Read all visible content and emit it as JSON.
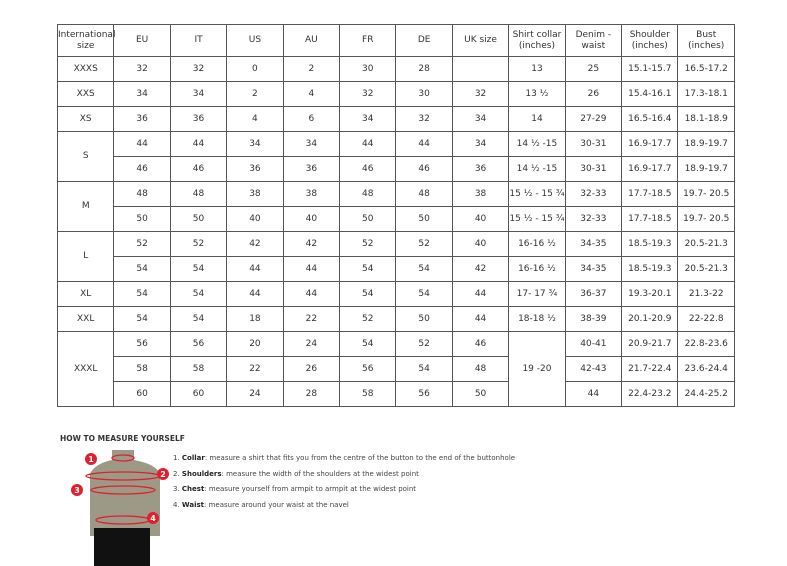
{
  "headers": [
    "International size",
    "EU",
    "IT",
    "US",
    "AU",
    "FR",
    "DE",
    "UK size",
    "Shirt collar (inches)",
    "Denim - waist",
    "Shoulder (inches)",
    "Bust (inches)"
  ],
  "groups": [
    {
      "size": "XXXS",
      "rows": [
        [
          "32",
          "32",
          "0",
          "2",
          "30",
          "28",
          "",
          "13",
          "25",
          "15.1-15.7",
          "16.5-17.2"
        ]
      ]
    },
    {
      "size": "XXS",
      "rows": [
        [
          "34",
          "34",
          "2",
          "4",
          "32",
          "30",
          "32",
          "13 ½",
          "26",
          "15.4-16.1",
          "17.3-18.1"
        ]
      ]
    },
    {
      "size": "XS",
      "rows": [
        [
          "36",
          "36",
          "4",
          "6",
          "34",
          "32",
          "34",
          "14",
          "27-29",
          "16.5-16.4",
          "18.1-18.9"
        ]
      ]
    },
    {
      "size": "S",
      "rows": [
        [
          "44",
          "44",
          "34",
          "34",
          "44",
          "44",
          "34",
          "14 ½ -15",
          "30-31",
          "16.9-17.7",
          "18.9-19.7"
        ],
        [
          "46",
          "46",
          "36",
          "36",
          "46",
          "46",
          "36",
          "14 ½ -15",
          "30-31",
          "16.9-17.7",
          "18.9-19.7"
        ]
      ]
    },
    {
      "size": "M",
      "rows": [
        [
          "48",
          "48",
          "38",
          "38",
          "48",
          "48",
          "38",
          "15 ½ - 15 ¾",
          "32-33",
          "17.7-18.5",
          "19.7- 20.5"
        ],
        [
          "50",
          "50",
          "40",
          "40",
          "50",
          "50",
          "40",
          "15 ½ - 15 ¾",
          "32-33",
          "17.7-18.5",
          "19.7- 20.5"
        ]
      ]
    },
    {
      "size": "L",
      "rows": [
        [
          "52",
          "52",
          "42",
          "42",
          "52",
          "52",
          "40",
          "16-16 ½",
          "34-35",
          "18.5-19.3",
          "20.5-21.3"
        ],
        [
          "54",
          "54",
          "44",
          "44",
          "54",
          "54",
          "42",
          "16-16 ½",
          "34-35",
          "18.5-19.3",
          "20.5-21.3"
        ]
      ]
    },
    {
      "size": "XL",
      "rows": [
        [
          "54",
          "54",
          "44",
          "44",
          "54",
          "54",
          "44",
          "17- 17 ¾",
          "36-37",
          "19.3-20.1",
          "21.3-22"
        ]
      ]
    },
    {
      "size": "XXL",
      "rows": [
        [
          "54",
          "54",
          "18",
          "22",
          "52",
          "50",
          "44",
          "18-18 ½",
          "38-39",
          "20.1-20.9",
          "22-22.8"
        ]
      ]
    },
    {
      "size": "XXXL",
      "collar_merged": "19 -20",
      "rows": [
        [
          "56",
          "56",
          "20",
          "24",
          "54",
          "52",
          "46",
          null,
          "40-41",
          "20.9-21.7",
          "22.8-23.6"
        ],
        [
          "58",
          "58",
          "22",
          "26",
          "56",
          "54",
          "48",
          null,
          "42-43",
          "21.7-22.4",
          "23.6-24.4"
        ],
        [
          "60",
          "60",
          "24",
          "28",
          "58",
          "56",
          "50",
          null,
          "44",
          "22.4-23.2",
          "24.4-25.2"
        ]
      ]
    }
  ],
  "measure": {
    "title": "HOW TO MEASURE YOURSELF",
    "steps": [
      {
        "num": "1.",
        "label": "Collar",
        "text": ": measure a shirt that fits you from the centre of the button to the end of the buttonhole"
      },
      {
        "num": "2.",
        "label": "Shoulders",
        "text": ": measure the width of the shoulders at the widest point"
      },
      {
        "num": "3.",
        "label": "Chest",
        "text": ": measure yourself from armpit to armpit at the widest point"
      },
      {
        "num": "4.",
        "label": "Waist",
        "text": ": measure around your waist at the navel"
      }
    ],
    "markers": [
      "1",
      "2",
      "3",
      "4"
    ],
    "accent": "#e0202e"
  }
}
